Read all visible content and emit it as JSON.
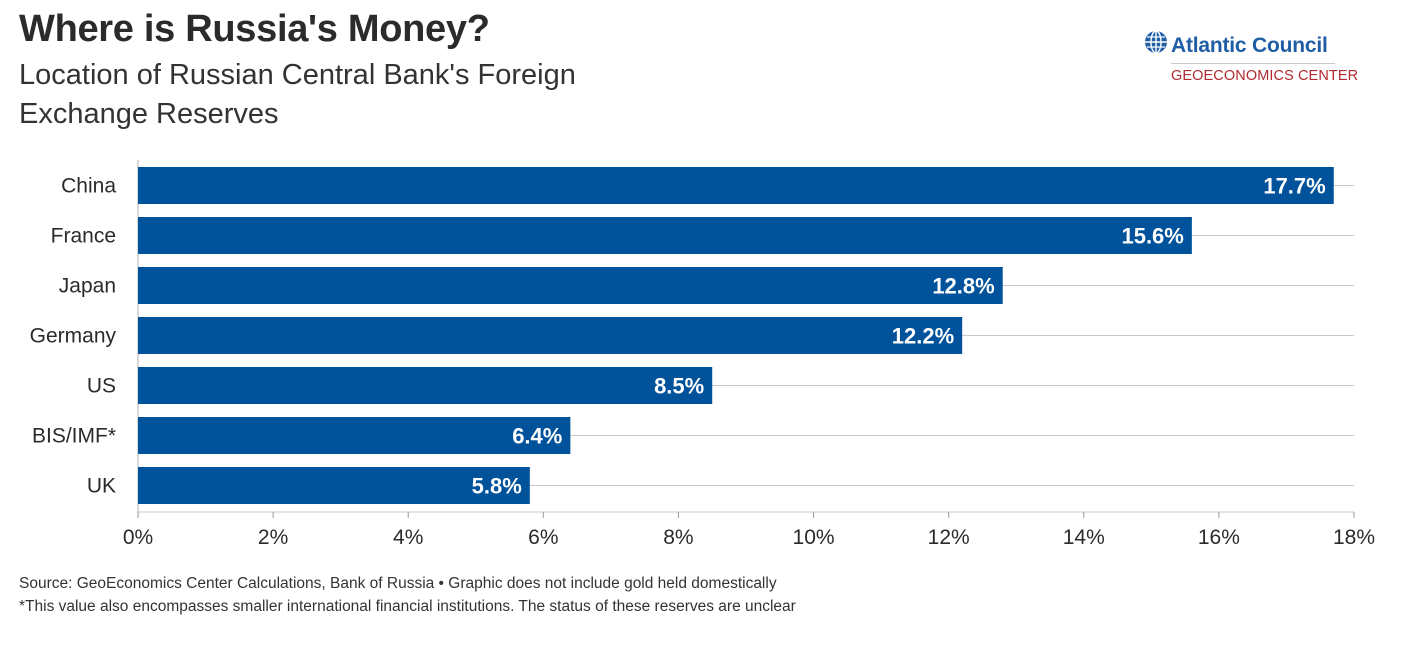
{
  "header": {
    "title": "Where is Russia's Money?",
    "subtitle": "Location of Russian Central Bank's Foreign Exchange Reserves"
  },
  "logo": {
    "name": "Atlantic Council",
    "subname": "GEOECONOMICS CENTER",
    "icon": "globe-icon"
  },
  "colors": {
    "bar": "#00539b",
    "bar_label": "#ffffff",
    "grid": "#c8c8c8",
    "text": "#2b2b2b",
    "logo_blue": "#1f5da5",
    "logo_red": "#b02a30"
  },
  "chart_data": {
    "type": "bar",
    "orientation": "horizontal",
    "title": "Where is Russia's Money?",
    "subtitle": "Location of Russian Central Bank's Foreign Exchange Reserves",
    "categories": [
      "China",
      "France",
      "Japan",
      "Germany",
      "US",
      "BIS/IMF*",
      "UK"
    ],
    "values": [
      17.7,
      15.6,
      12.8,
      12.2,
      8.5,
      6.4,
      5.8
    ],
    "value_labels": [
      "17.7%",
      "15.6%",
      "12.8%",
      "12.2%",
      "8.5%",
      "6.4%",
      "5.8%"
    ],
    "xlim": [
      0,
      18
    ],
    "xticks": [
      0,
      2,
      4,
      6,
      8,
      10,
      12,
      14,
      16,
      18
    ],
    "xtick_labels": [
      "0%",
      "2%",
      "4%",
      "6%",
      "8%",
      "10%",
      "12%",
      "14%",
      "16%",
      "18%"
    ],
    "xlabel": "",
    "ylabel": "",
    "grid": true,
    "legend": "none"
  },
  "footer": {
    "source": "Source: GeoEconomics Center Calculations, Bank of Russia • Graphic does not include gold held domestically",
    "note": "*This value also encompasses smaller international financial institutions. The status of these reserves are unclear"
  }
}
